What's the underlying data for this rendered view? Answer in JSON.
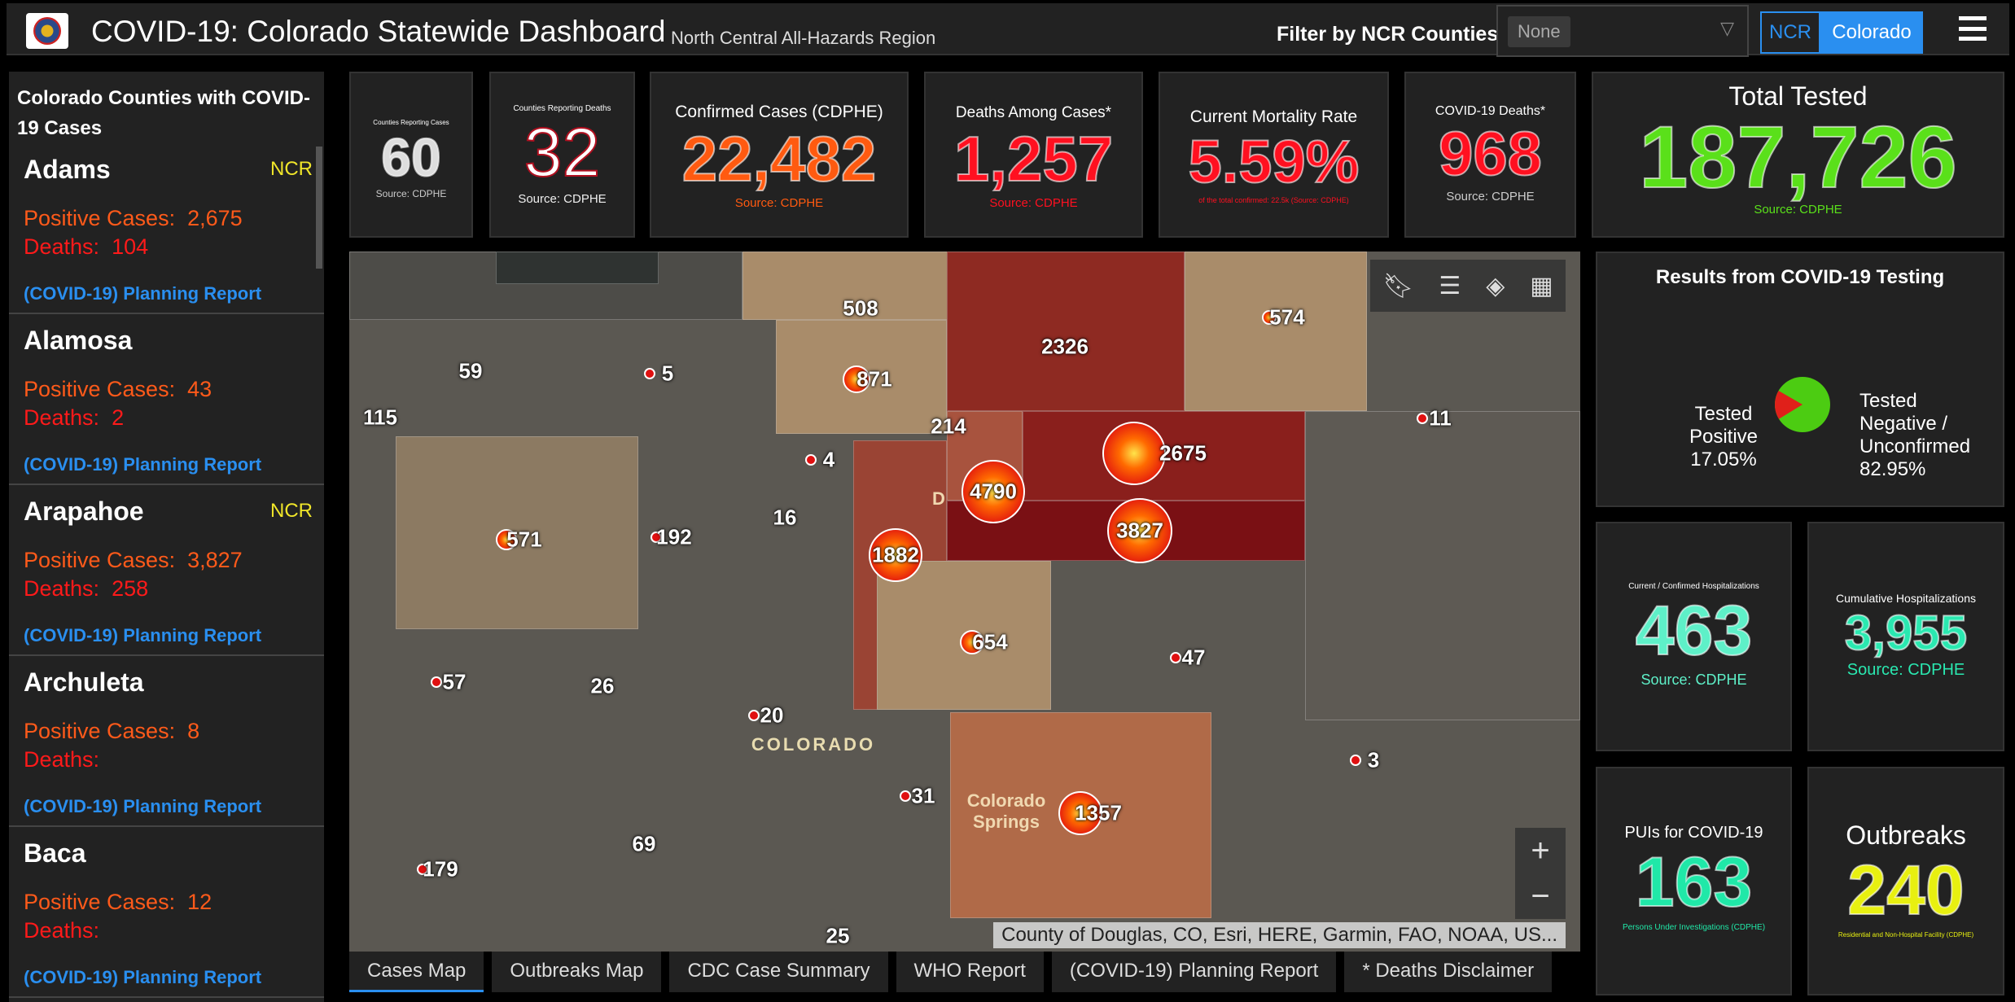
{
  "header": {
    "title": "COVID-19: Colorado Statewide Dashboard",
    "subtitle": "North Central All-Hazards Region",
    "filter_label": "Filter by NCR Counties:",
    "filter_value": "None",
    "btn_ncr": "NCR",
    "btn_colorado": "Colorado"
  },
  "sidebar": {
    "title": "Colorado Counties with COVID-19 Cases",
    "pos_label": "Positive Cases:",
    "deaths_label": "Deaths:",
    "report_label": "(COVID-19) Planning Report",
    "counties": [
      {
        "name": "Adams",
        "tag": "NCR",
        "positive": "2,675",
        "deaths": "104"
      },
      {
        "name": "Alamosa",
        "tag": "",
        "positive": "43",
        "deaths": "2"
      },
      {
        "name": "Arapahoe",
        "tag": "NCR",
        "positive": "3,827",
        "deaths": "258"
      },
      {
        "name": "Archuleta",
        "tag": "",
        "positive": "8",
        "deaths": ""
      },
      {
        "name": "Baca",
        "tag": "",
        "positive": "12",
        "deaths": ""
      }
    ]
  },
  "stats": {
    "counties_cases": {
      "label": "Counties Reporting Cases",
      "value": "60",
      "source": "Source: CDPHE"
    },
    "counties_deaths": {
      "label": "Counties Reporting Deaths",
      "value": "32",
      "source": "Source: CDPHE"
    },
    "confirmed": {
      "label": "Confirmed Cases (CDPHE)",
      "value": "22,482",
      "source": "Source: CDPHE"
    },
    "deaths_among": {
      "label": "Deaths Among Cases*",
      "value": "1,257",
      "source": "Source: CDPHE"
    },
    "mortality": {
      "label": "Current Mortality Rate",
      "value": "5.59%",
      "source": "of the total confirmed: 22.5k (Source: CDPHE)"
    },
    "covid_deaths": {
      "label": "COVID-19 Deaths*",
      "value": "968",
      "source": "Source: CDPHE"
    },
    "total_tested": {
      "label": "Total Tested",
      "value": "187,726",
      "source": "Source: CDPHE"
    },
    "current_hosp": {
      "label": "Current / Confirmed Hospitalizations",
      "value": "463",
      "source": "Source: CDPHE"
    },
    "cumulative_hosp": {
      "label": "Cumulative Hospitalizations",
      "value": "3,955",
      "source": "Source: CDPHE"
    },
    "puis": {
      "label": "PUIs for COVID-19",
      "value": "163",
      "source": "Persons Under Investigations (CDPHE)"
    },
    "outbreaks": {
      "label": "Outbreaks",
      "value": "240",
      "source": "Residential and Non-Hospital Facility (CDPHE)"
    }
  },
  "testing": {
    "title": "Results from COVID-19 Testing",
    "positive_label": "Tested Positive",
    "positive_pct": "17.05%",
    "positive_value": 17.05,
    "negative_label": "Tested Negative / Unconfirmed",
    "negative_pct": "82.95%",
    "negative_value": 82.95,
    "colors": {
      "positive": "#e0201a",
      "negative": "#4ccc12"
    }
  },
  "map": {
    "labels": [
      "508",
      "2326",
      "574",
      "59",
      "5",
      "871",
      "115",
      "214",
      "11",
      "4",
      "2675",
      "4790",
      "571",
      "192",
      "16",
      "1882",
      "3827",
      "654",
      "47",
      "57",
      "26",
      "20",
      "3",
      "31",
      "1357",
      "69",
      "179",
      "25"
    ],
    "place_state": "COLORADO",
    "place_city": "Colorado Springs",
    "place_denver": "D",
    "attribution": "County of Douglas, CO, Esri, HERE, Garmin, FAO, NOAA, US..."
  },
  "tabs": [
    "Cases Map",
    "Outbreaks Map",
    "CDC Case Summary",
    "WHO Report",
    "(COVID-19) Planning Report",
    "* Deaths Disclaimer"
  ]
}
